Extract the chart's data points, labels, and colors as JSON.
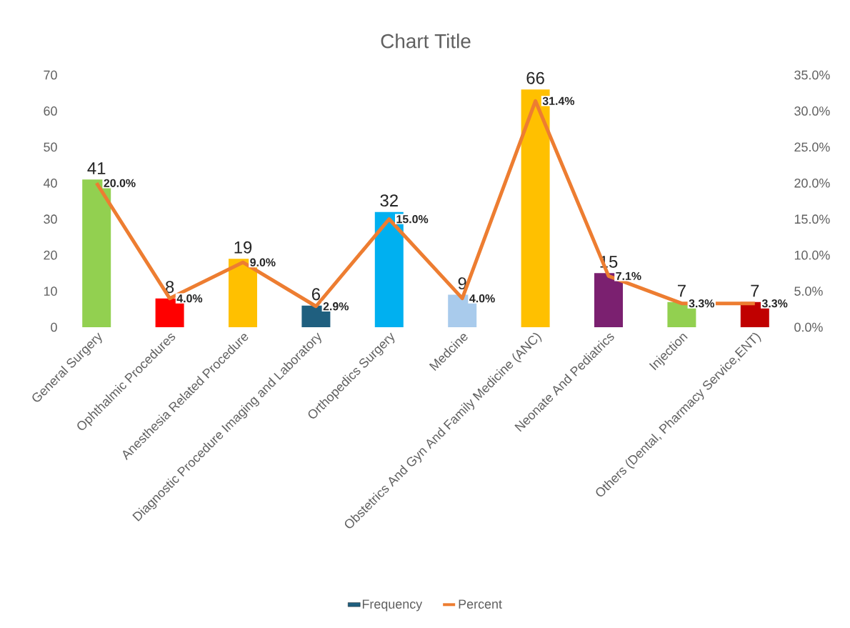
{
  "chart_data": {
    "type": "bar",
    "title": "Chart Title",
    "categories": [
      "General Surgery",
      "Ophthalmic Procedures",
      "Anesthesia Related Procedure",
      "Diagnostic Procedure Imaging and Laboratory",
      "Orthopedics Surgery",
      "Medcine",
      "Obstetrics And Gyn And Family Medicine (ANC)",
      "Neonate And Pediatrics",
      "Injection",
      "Others (Dental, Pharmacy Service,ENT)"
    ],
    "series": [
      {
        "name": "Frequency",
        "color": "#1f5f7f",
        "colors": [
          "#92d050",
          "#ff0000",
          "#ffc000",
          "#1f5f7f",
          "#00b0f0",
          "#a9cbec",
          "#ffc000",
          "#7b2070",
          "#92d050",
          "#c00000"
        ],
        "values": [
          41,
          8,
          19,
          6,
          32,
          9,
          66,
          15,
          7,
          7
        ],
        "value_labels": [
          "41",
          "8",
          "19",
          "6",
          "32",
          "9",
          "66",
          "15",
          "7",
          "7"
        ]
      },
      {
        "name": "Percent",
        "type": "line",
        "axis": "y2",
        "color": "#ed7d31",
        "values": [
          20.0,
          4.0,
          9.0,
          2.9,
          15.0,
          4.0,
          31.4,
          7.1,
          3.3,
          3.3
        ],
        "value_labels": [
          "20.0%",
          "4.0%",
          "9.0%",
          "2.9%",
          "15.0%",
          "4.0%",
          "31.4%",
          "7.1%",
          "3.3%",
          "3.3%"
        ]
      }
    ],
    "ylim": [
      0,
      70
    ],
    "yticks": [
      0,
      10,
      20,
      30,
      40,
      50,
      60,
      70
    ],
    "y2lim": [
      0,
      35
    ],
    "y2ticks": [
      {
        "value": 0,
        "label": "0.0%"
      },
      {
        "value": 5,
        "label": "5.0%"
      },
      {
        "value": 10,
        "label": "10.0%"
      },
      {
        "value": 15,
        "label": "15.0%"
      },
      {
        "value": 20,
        "label": "20.0%"
      },
      {
        "value": 25,
        "label": "25.0%"
      },
      {
        "value": 30,
        "label": "30.0%"
      },
      {
        "value": 35,
        "label": "35.0%"
      }
    ],
    "legend": "bottom"
  }
}
